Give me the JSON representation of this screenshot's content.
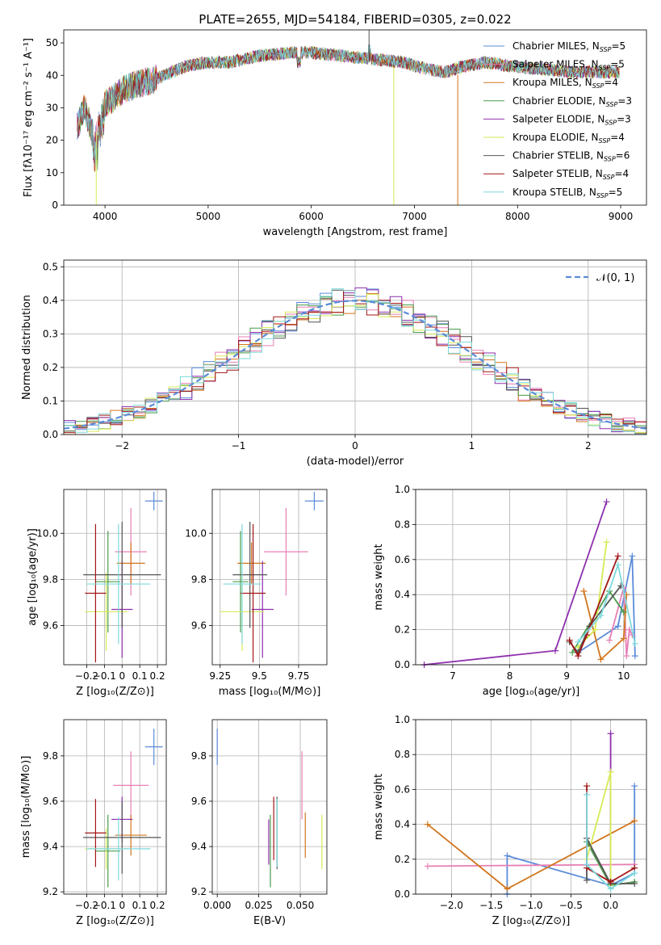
{
  "figure": {
    "title": "PLATE=2655, MJD=54184, FIBERID=0305, z=0.022"
  },
  "models": [
    {
      "name": "Chabrier MILES",
      "nssp": "5",
      "color": "#5b8bd9"
    },
    {
      "name": "Salpeter MILES",
      "nssp": "5",
      "color": "#e77fb5"
    },
    {
      "name": "Kroupa MILES",
      "nssp": "4",
      "color": "#d2761d"
    },
    {
      "name": "Chabrier ELODIE",
      "nssp": "3",
      "color": "#4a9b4a"
    },
    {
      "name": "Salpeter ELODIE",
      "nssp": "3",
      "color": "#8e2fad"
    },
    {
      "name": "Kroupa ELODIE",
      "nssp": "4",
      "color": "#d7ea55"
    },
    {
      "name": "Chabrier STELIB",
      "nssp": "6",
      "color": "#555555"
    },
    {
      "name": "Salpeter STELIB",
      "nssp": "4",
      "color": "#a31515"
    },
    {
      "name": "Kroupa STELIB",
      "nssp": "5",
      "color": "#7dd9de"
    }
  ],
  "chart_data": [
    {
      "id": "spectrum",
      "type": "line",
      "xlabel": "wavelength [Angstrom, rest frame]",
      "ylabel": "Flux [fλ10⁻¹⁷ erg cm⁻² s⁻¹ A⁻¹]",
      "xlim": [
        3600,
        9250
      ],
      "ylim": [
        0,
        54
      ],
      "xticks": [
        4000,
        5000,
        6000,
        7000,
        8000,
        9000
      ],
      "yticks": [
        0,
        10,
        20,
        30,
        40,
        50
      ],
      "envelope_x": [
        3730,
        3800,
        3900,
        4000,
        4200,
        4500,
        4800,
        5000,
        5200,
        5500,
        5800,
        6000,
        6300,
        6600,
        6900,
        7100,
        7300,
        7500,
        7700,
        7900,
        8200,
        8500,
        8800,
        9000
      ],
      "envelope_y": [
        24,
        30,
        20,
        31,
        36,
        39,
        43,
        44,
        44,
        46,
        47,
        47,
        46,
        45,
        44,
        42,
        41,
        43,
        44,
        43,
        42,
        41,
        41,
        41
      ],
      "dropouts": [
        {
          "x": 3915,
          "model": 5
        },
        {
          "x": 6800,
          "model": 5
        },
        {
          "x": 7420,
          "model": 2
        }
      ],
      "legend": "top-right"
    },
    {
      "id": "residuals",
      "type": "bar",
      "xlabel": "(data-model)/error",
      "ylabel": "Normed distribution",
      "xlim": [
        -2.5,
        2.5
      ],
      "ylim": [
        0,
        0.52
      ],
      "xticks": [
        -2,
        -1,
        0,
        1,
        2
      ],
      "yticks": [
        0.0,
        0.1,
        0.2,
        0.3,
        0.4,
        0.5
      ],
      "bin_width": 0.1,
      "reference_curve": "N(0,1)",
      "legend_label": "𝒩(0, 1)",
      "grid": true
    },
    {
      "id": "age-vs-Z",
      "type": "scatter",
      "xlabel": "Z [log₁₀(Z/Z⊙)]",
      "ylabel": "age  [log₁₀(age/yr)]",
      "xlim": [
        -0.33,
        0.25
      ],
      "ylim": [
        9.43,
        10.19
      ],
      "xticks": [
        -0.2,
        -0.1,
        0.0,
        0.1,
        0.2
      ],
      "yticks": [
        9.6,
        9.8,
        10.0
      ],
      "points": [
        {
          "m": 0,
          "x": 0.18,
          "y": 10.14,
          "ex": 0.05,
          "ey": 0.04
        },
        {
          "m": 1,
          "x": 0.05,
          "y": 9.92,
          "ex": 0.09,
          "ey": 0.19
        },
        {
          "m": 2,
          "x": 0.05,
          "y": 9.87,
          "ex": 0.08,
          "ey": 0.09
        },
        {
          "m": 3,
          "x": -0.08,
          "y": 9.79,
          "ex": 0.07,
          "ey": 0.22
        },
        {
          "m": 4,
          "x": 0.0,
          "y": 9.67,
          "ex": 0.06,
          "ey": 0.21
        },
        {
          "m": 5,
          "x": -0.09,
          "y": 9.66,
          "ex": 0.12,
          "ey": 0.17
        },
        {
          "m": 6,
          "x": 0.0,
          "y": 9.82,
          "ex": 0.22,
          "ey": 0.23
        },
        {
          "m": 7,
          "x": -0.15,
          "y": 9.74,
          "ex": 0.06,
          "ey": 0.3
        },
        {
          "m": 8,
          "x": -0.02,
          "y": 9.78,
          "ex": 0.18,
          "ey": 0.26
        }
      ]
    },
    {
      "id": "age-vs-mass",
      "type": "scatter",
      "xlabel": "mass [log₁₀(M/M⊙)]",
      "ylabel": "",
      "xlim": [
        9.2,
        9.93
      ],
      "ylim": [
        9.43,
        10.19
      ],
      "xticks": [
        9.25,
        9.5,
        9.75
      ],
      "yticks": [
        9.6,
        9.8,
        10.0
      ],
      "points": [
        {
          "m": 0,
          "x": 9.85,
          "y": 10.14,
          "ex": 0.06,
          "ey": 0.04
        },
        {
          "m": 1,
          "x": 9.67,
          "y": 9.92,
          "ex": 0.14,
          "ey": 0.19
        },
        {
          "m": 2,
          "x": 9.45,
          "y": 9.87,
          "ex": 0.09,
          "ey": 0.09
        },
        {
          "m": 3,
          "x": 9.38,
          "y": 9.79,
          "ex": 0.05,
          "ey": 0.22
        },
        {
          "m": 4,
          "x": 9.52,
          "y": 9.67,
          "ex": 0.07,
          "ey": 0.21
        },
        {
          "m": 5,
          "x": 9.39,
          "y": 9.66,
          "ex": 0.14,
          "ey": 0.17
        },
        {
          "m": 6,
          "x": 9.44,
          "y": 9.82,
          "ex": 0.11,
          "ey": 0.23
        },
        {
          "m": 7,
          "x": 9.46,
          "y": 9.74,
          "ex": 0.08,
          "ey": 0.3
        },
        {
          "m": 8,
          "x": 9.39,
          "y": 9.78,
          "ex": 0.12,
          "ey": 0.26
        }
      ]
    },
    {
      "id": "weight-vs-age",
      "type": "line",
      "xlabel": "age  [log₁₀(age/yr)]",
      "ylabel": "mass weight",
      "xlim": [
        6.35,
        10.4
      ],
      "ylim": [
        0,
        1
      ],
      "xticks": [
        7,
        8,
        9,
        10
      ],
      "yticks": [
        0.0,
        0.2,
        0.4,
        0.6,
        0.8,
        1.0
      ],
      "series": [
        {
          "m": 0,
          "x": [
            9.2,
            9.9,
            10.15,
            10.2
          ],
          "y": [
            0.07,
            0.22,
            0.62,
            0.05
          ]
        },
        {
          "m": 1,
          "x": [
            9.75,
            10.0,
            10.05,
            10.1,
            10.15
          ],
          "y": [
            0.14,
            0.44,
            0.05,
            0.2,
            0.17
          ]
        },
        {
          "m": 2,
          "x": [
            9.3,
            9.6,
            10.0,
            10.05
          ],
          "y": [
            0.42,
            0.03,
            0.15,
            0.4
          ]
        },
        {
          "m": 3,
          "x": [
            9.1,
            9.75,
            10.0
          ],
          "y": [
            0.07,
            0.42,
            0.3
          ]
        },
        {
          "m": 4,
          "x": [
            6.5,
            8.8,
            9.7
          ],
          "y": [
            0.0,
            0.08,
            0.93
          ]
        },
        {
          "m": 5,
          "x": [
            9.2,
            9.5,
            9.7
          ],
          "y": [
            0.1,
            0.2,
            0.7
          ]
        },
        {
          "m": 6,
          "x": [
            9.05,
            9.2,
            9.4,
            9.95
          ],
          "y": [
            0.13,
            0.07,
            0.22,
            0.45
          ]
        },
        {
          "m": 7,
          "x": [
            9.05,
            9.2,
            9.35,
            9.9
          ],
          "y": [
            0.14,
            0.05,
            0.17,
            0.62
          ]
        },
        {
          "m": 8,
          "x": [
            9.2,
            9.6,
            9.9,
            10.2
          ],
          "y": [
            0.13,
            0.28,
            0.57,
            0.12
          ]
        }
      ]
    },
    {
      "id": "mass-vs-Z",
      "type": "scatter",
      "xlabel": "Z [log₁₀(Z/Z⊙)]",
      "ylabel": "mass [log₁₀(M/M⊙)]",
      "xlim": [
        -0.33,
        0.25
      ],
      "ylim": [
        9.19,
        9.96
      ],
      "xticks": [
        -0.2,
        -0.1,
        0.0,
        0.1,
        0.2
      ],
      "yticks": [
        9.2,
        9.4,
        9.6,
        9.8
      ],
      "points": [
        {
          "m": 0,
          "x": 0.18,
          "y": 9.84,
          "ex": 0.05,
          "ey": 0.08
        },
        {
          "m": 1,
          "x": 0.05,
          "y": 9.67,
          "ex": 0.1,
          "ey": 0.15
        },
        {
          "m": 2,
          "x": 0.05,
          "y": 9.45,
          "ex": 0.09,
          "ey": 0.09
        },
        {
          "m": 3,
          "x": -0.08,
          "y": 9.38,
          "ex": 0.07,
          "ey": 0.16
        },
        {
          "m": 4,
          "x": 0.0,
          "y": 9.52,
          "ex": 0.06,
          "ey": 0.1
        },
        {
          "m": 5,
          "x": -0.09,
          "y": 9.39,
          "ex": 0.12,
          "ey": 0.09
        },
        {
          "m": 6,
          "x": 0.0,
          "y": 9.44,
          "ex": 0.22,
          "ey": 0.16
        },
        {
          "m": 7,
          "x": -0.15,
          "y": 9.46,
          "ex": 0.06,
          "ey": 0.15
        },
        {
          "m": 8,
          "x": -0.02,
          "y": 9.39,
          "ex": 0.18,
          "ey": 0.14
        }
      ]
    },
    {
      "id": "mass-vs-EBV",
      "type": "scatter",
      "xlabel": "E(B-V)",
      "ylabel": "",
      "xlim": [
        -0.003,
        0.066
      ],
      "ylim": [
        9.19,
        9.96
      ],
      "xticks": [
        0.0,
        0.025,
        0.05
      ],
      "xticklabels": [
        "0.000",
        "0.025",
        "0.050"
      ],
      "yticks": [
        9.2,
        9.4,
        9.6,
        9.8
      ],
      "points": [
        {
          "m": 0,
          "x": 0.0,
          "y": 9.84,
          "ex": 0.0,
          "ey": 0.08
        },
        {
          "m": 1,
          "x": 0.051,
          "y": 9.67,
          "ex": 0.0,
          "ey": 0.15
        },
        {
          "m": 2,
          "x": 0.053,
          "y": 9.45,
          "ex": 0.0,
          "ey": 0.1
        },
        {
          "m": 3,
          "x": 0.032,
          "y": 9.38,
          "ex": 0.0,
          "ey": 0.16
        },
        {
          "m": 4,
          "x": 0.031,
          "y": 9.42,
          "ex": 0.0,
          "ey": 0.1
        },
        {
          "m": 5,
          "x": 0.063,
          "y": 9.42,
          "ex": 0.0,
          "ey": 0.12
        },
        {
          "m": 6,
          "x": 0.036,
          "y": 9.46,
          "ex": 0.0,
          "ey": 0.16
        },
        {
          "m": 7,
          "x": 0.034,
          "y": 9.48,
          "ex": 0.0,
          "ey": 0.14
        },
        {
          "m": 8,
          "x": 0.036,
          "y": 9.46,
          "ex": 0.0,
          "ey": 0.15
        }
      ]
    },
    {
      "id": "weight-vs-Z",
      "type": "line",
      "xlabel": "Z [log₁₀(Z/Z⊙)]",
      "ylabel": "mass weight",
      "xlim": [
        -2.45,
        0.45
      ],
      "ylim": [
        0,
        1
      ],
      "xticks": [
        -2.0,
        -1.5,
        -1.0,
        -0.5,
        0.0
      ],
      "xticklabels": [
        "−2.0",
        "−1.5",
        "−1.0",
        "−0.5",
        "0.0"
      ],
      "yticks": [
        0.0,
        0.2,
        0.4,
        0.6,
        0.8,
        1.0
      ],
      "series": [
        {
          "m": 0,
          "x": [
            -1.3,
            -1.3,
            0.0,
            0.3,
            0.3
          ],
          "y": [
            0.0,
            0.22,
            0.05,
            0.12,
            0.62
          ]
        },
        {
          "m": 1,
          "x": [
            -2.3,
            0.3
          ],
          "y": [
            0.16,
            0.17
          ]
        },
        {
          "m": 2,
          "x": [
            -2.3,
            -1.3,
            0.3
          ],
          "y": [
            0.4,
            0.03,
            0.42
          ]
        },
        {
          "m": 3,
          "x": [
            -0.3,
            0.0,
            0.3
          ],
          "y": [
            0.3,
            0.05,
            0.07
          ]
        },
        {
          "m": 4,
          "x": [
            0.0,
            0.0
          ],
          "y": [
            0.08,
            0.92
          ]
        },
        {
          "m": 5,
          "x": [
            -0.3,
            0.0,
            0.0
          ],
          "y": [
            0.2,
            0.7,
            0.05
          ]
        },
        {
          "m": 6,
          "x": [
            -0.3,
            -0.3,
            0.0,
            0.3
          ],
          "y": [
            0.08,
            0.32,
            0.06,
            0.06
          ]
        },
        {
          "m": 7,
          "x": [
            -0.3,
            -0.3,
            0.0,
            0.3
          ],
          "y": [
            0.62,
            0.15,
            0.07,
            0.15
          ]
        },
        {
          "m": 8,
          "x": [
            -0.3,
            -0.3,
            0.0,
            0.3
          ],
          "y": [
            0.57,
            0.17,
            0.03,
            0.12
          ]
        }
      ]
    }
  ]
}
